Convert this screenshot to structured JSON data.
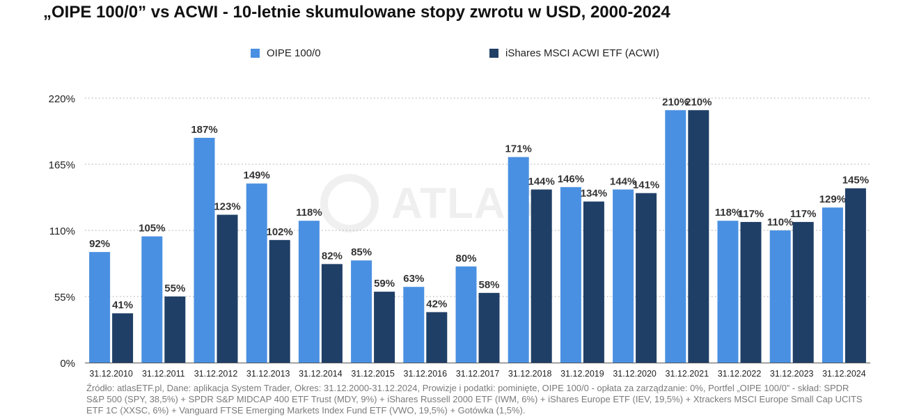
{
  "title": "„OIPE 100/0” vs ACWI - 10-letnie skumulowane stopy zwrotu w USD, 2000-2024",
  "watermark": "ATLAS",
  "source": "Źródło: atlasETF.pl, Dane: aplikacja System Trader, Okres: 31.12.2000-31.12.2024, Prowizje i podatki: pominięte, OIPE 100/0 - opłata za zarządzanie: 0%, Portfel „OIPE 100/0” - skład: SPDR S&P 500 (SPY, 38,5%) + SPDR S&P MIDCAP 400 ETF Trust (MDY, 9%) + iShares Russell 2000 ETF (IWM, 6%) + iShares Europe ETF (IEV, 19,5%) + Xtrackers MSCI Europe Small Cap UCITS ETF 1C (XXSC, 6%) + Vanguard FTSE Emerging Markets Index Fund ETF (VWO, 19,5%) + Gotówka (1,5%).",
  "chart_data": {
    "type": "bar",
    "categories": [
      "31.12.2010",
      "31.12.2011",
      "31.12.2012",
      "31.12.2013",
      "31.12.2014",
      "31.12.2015",
      "31.12.2016",
      "31.12.2017",
      "31.12.2018",
      "31.12.2019",
      "31.12.2020",
      "31.12.2021",
      "31.12.2022",
      "31.12.2023",
      "31.12.2024"
    ],
    "series": [
      {
        "name": "OIPE 100/0",
        "color": "#4a90e2",
        "values": [
          92,
          105,
          187,
          149,
          118,
          85,
          63,
          80,
          171,
          146,
          144,
          210,
          118,
          110,
          129
        ]
      },
      {
        "name": "iShares MSCI ACWI ETF (ACWI)",
        "color": "#1f3f66",
        "values": [
          41,
          55,
          123,
          102,
          82,
          59,
          42,
          58,
          144,
          134,
          141,
          210,
          117,
          117,
          145
        ]
      }
    ],
    "ylim": [
      0,
      220
    ],
    "yticks": [
      0,
      55,
      110,
      165,
      220
    ],
    "ytick_labels": [
      "0%",
      "55%",
      "110%",
      "165%",
      "220%"
    ],
    "value_suffix": "%",
    "grid": true,
    "legend_position": "top-center"
  }
}
